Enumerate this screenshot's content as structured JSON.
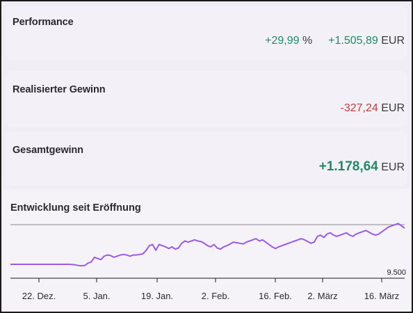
{
  "performance": {
    "title": "Performance",
    "percent": "+29,99",
    "percent_unit": "%",
    "amount": "+1.505,89",
    "amount_unit": "EUR"
  },
  "realized_gain": {
    "title": "Realisierter Gewinn",
    "amount": "-327,24",
    "amount_unit": "EUR"
  },
  "total_gain": {
    "title": "Gesamtgewinn",
    "amount": "+1.178,64",
    "amount_unit": "EUR"
  },
  "colors": {
    "positive": "#1f8a63",
    "negative": "#c23a3a",
    "line": "#9b59e6"
  },
  "chart_data": {
    "type": "line",
    "title": "Entwicklung seit Eröffnung",
    "x_tick_labels": [
      "22. Dez.",
      "5. Jan.",
      "19. Jan.",
      "2. Feb.",
      "16. Feb.",
      "2. März",
      "16. März"
    ],
    "y_tick_labels": [
      "9.500"
    ],
    "grid": false,
    "series": [
      {
        "values": [
          9440,
          9440,
          9440,
          9440,
          9440,
          9440,
          9440,
          9440,
          9440,
          9440,
          9440,
          9440,
          9440,
          9440,
          9440,
          9440,
          9440,
          9440,
          9440,
          9438,
          9436,
          9430,
          9428,
          9430,
          9450,
          9460,
          9500,
          9490,
          9480,
          9510,
          9520,
          9515,
          9500,
          9510,
          9520,
          9525,
          9520,
          9510,
          9520,
          9520,
          9525,
          9530,
          9560,
          9600,
          9610,
          9560,
          9610,
          9600,
          9590,
          9575,
          9590,
          9570,
          9580,
          9620,
          9640,
          9630,
          9640,
          9650,
          9640,
          9635,
          9620,
          9600,
          9590,
          9610,
          9580,
          9570,
          9590,
          9600,
          9615,
          9630,
          9625,
          9620,
          9615,
          9630,
          9640,
          9650,
          9660,
          9640,
          9650,
          9630,
          9610,
          9590,
          9575,
          9590,
          9600,
          9610,
          9620,
          9630,
          9640,
          9650,
          9660,
          9650,
          9635,
          9620,
          9630,
          9680,
          9690,
          9670,
          9700,
          9710,
          9690,
          9680,
          9690,
          9700,
          9710,
          9690,
          9680,
          9700,
          9710,
          9720,
          9730,
          9715,
          9700,
          9690,
          9700,
          9720,
          9740,
          9760,
          9770,
          9780,
          9790,
          9770,
          9750
        ]
      }
    ]
  }
}
